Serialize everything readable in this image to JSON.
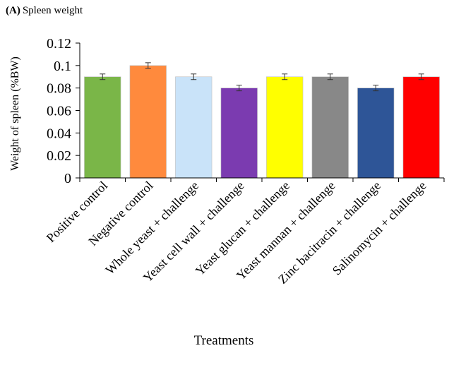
{
  "panel": {
    "tag": "(A)",
    "title": "Spleen weight"
  },
  "chart_data": {
    "type": "bar",
    "title": "Spleen weight",
    "xlabel": "Treatments",
    "ylabel": "Weight of spleen (%BW)",
    "ylim": [
      0,
      0.12
    ],
    "yticks": [
      "0",
      "0.02",
      "0.04",
      "0.06",
      "0.08",
      "0.1",
      "0.12"
    ],
    "grid": false,
    "legend": "none",
    "categories": [
      "Positive control",
      "Negative control",
      "Whole  yeast + challenge",
      "Yeast cell wall + challenge",
      "Yeast glucan + challenge",
      "Yeast mannan + challenge",
      "Zinc bacitracin + challenge",
      "Salinomycin + challenge"
    ],
    "values": [
      0.09,
      0.1,
      0.09,
      0.08,
      0.09,
      0.09,
      0.08,
      0.09
    ],
    "errors": [
      0.0025,
      0.0025,
      0.0025,
      0.0025,
      0.0025,
      0.0025,
      0.0025,
      0.0025
    ],
    "colors": [
      "#7AB648",
      "#FF8A3D",
      "#C9E3F9",
      "#7B3BB0",
      "#FFFF00",
      "#888888",
      "#2E5597",
      "#FF0000"
    ]
  }
}
